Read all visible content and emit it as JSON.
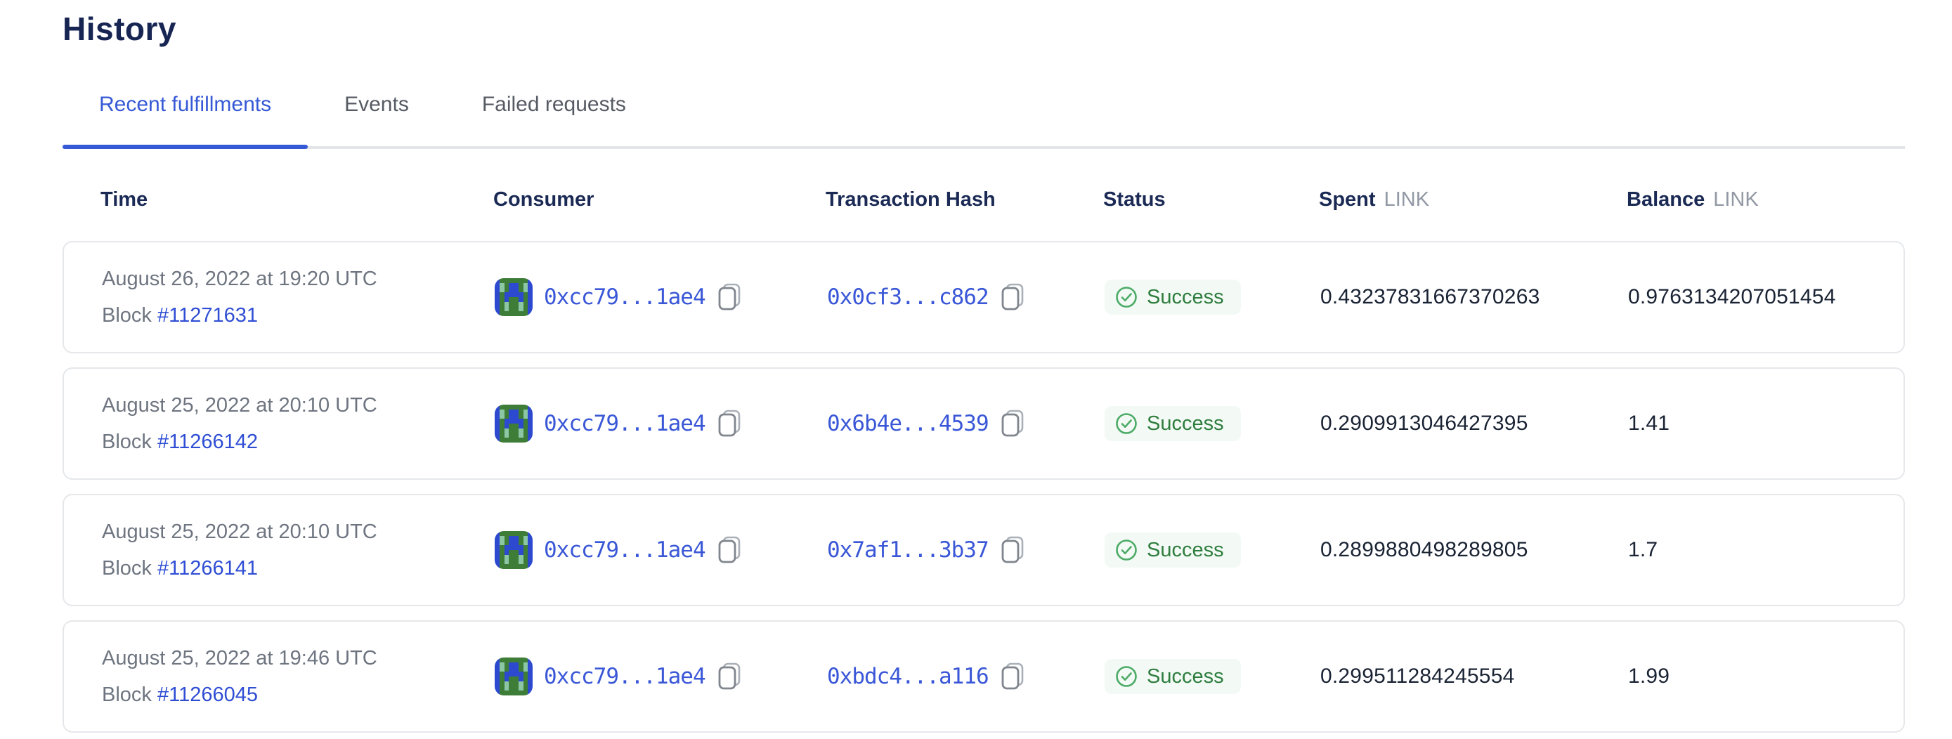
{
  "page": {
    "title": "History"
  },
  "tabs": [
    {
      "label": "Recent fulfillments",
      "active": true
    },
    {
      "label": "Events",
      "active": false
    },
    {
      "label": "Failed requests",
      "active": false
    }
  ],
  "table": {
    "headers": {
      "time": "Time",
      "consumer": "Consumer",
      "hash": "Transaction Hash",
      "status": "Status",
      "spent": "Spent",
      "balance": "Balance",
      "unit": "LINK"
    },
    "rows": [
      {
        "date": "August 26, 2022 at 19:20 UTC",
        "block_label": "Block",
        "block": "#11271631",
        "consumer": "0xcc79...1ae4",
        "hash": "0x0cf3...c862",
        "status": "Success",
        "spent": "0.43237831667370263",
        "balance": "0.9763134207051454"
      },
      {
        "date": "August 25, 2022 at 20:10 UTC",
        "block_label": "Block",
        "block": "#11266142",
        "consumer": "0xcc79...1ae4",
        "hash": "0x6b4e...4539",
        "status": "Success",
        "spent": "0.2909913046427395",
        "balance": "1.41"
      },
      {
        "date": "August 25, 2022 at 20:10 UTC",
        "block_label": "Block",
        "block": "#11266141",
        "consumer": "0xcc79...1ae4",
        "hash": "0x7af1...3b37",
        "status": "Success",
        "spent": "0.2899880498289805",
        "balance": "1.7"
      },
      {
        "date": "August 25, 2022 at 19:46 UTC",
        "block_label": "Block",
        "block": "#11266045",
        "consumer": "0xcc79...1ae4",
        "hash": "0xbdc4...a116",
        "status": "Success",
        "spent": "0.299511284245554",
        "balance": "1.99"
      }
    ]
  },
  "colors": {
    "accent_blue": "#3659d6",
    "link_blue": "#2f4ed4",
    "heading_navy": "#172553",
    "header_navy": "#1b2a55",
    "text_gray": "#6e7580",
    "unit_gray": "#9299a4",
    "success_green": "#2e7d3e",
    "success_icon_green": "#4cab66",
    "success_bg": "#f3faf5",
    "card_border": "#e5e7ea",
    "tab_rail": "#e3e5e8",
    "copy_icon_gray": "#80858e"
  },
  "icons": {
    "blockie_avatar": "pixel identicon, green/blue/teal",
    "avatar_colors": {
      "G": "#3e7d38",
      "B": "#2c49cf",
      "T": "#8cc7a5"
    },
    "avatar_grid": [
      "BGGGGGGB",
      "BTGBBGTB",
      "BTGBBGTB",
      "BGBBBBGB",
      "BGBGGBGB",
      "BGTGGTGB",
      "BGTGGTGB",
      "BGGGGGGB"
    ]
  }
}
